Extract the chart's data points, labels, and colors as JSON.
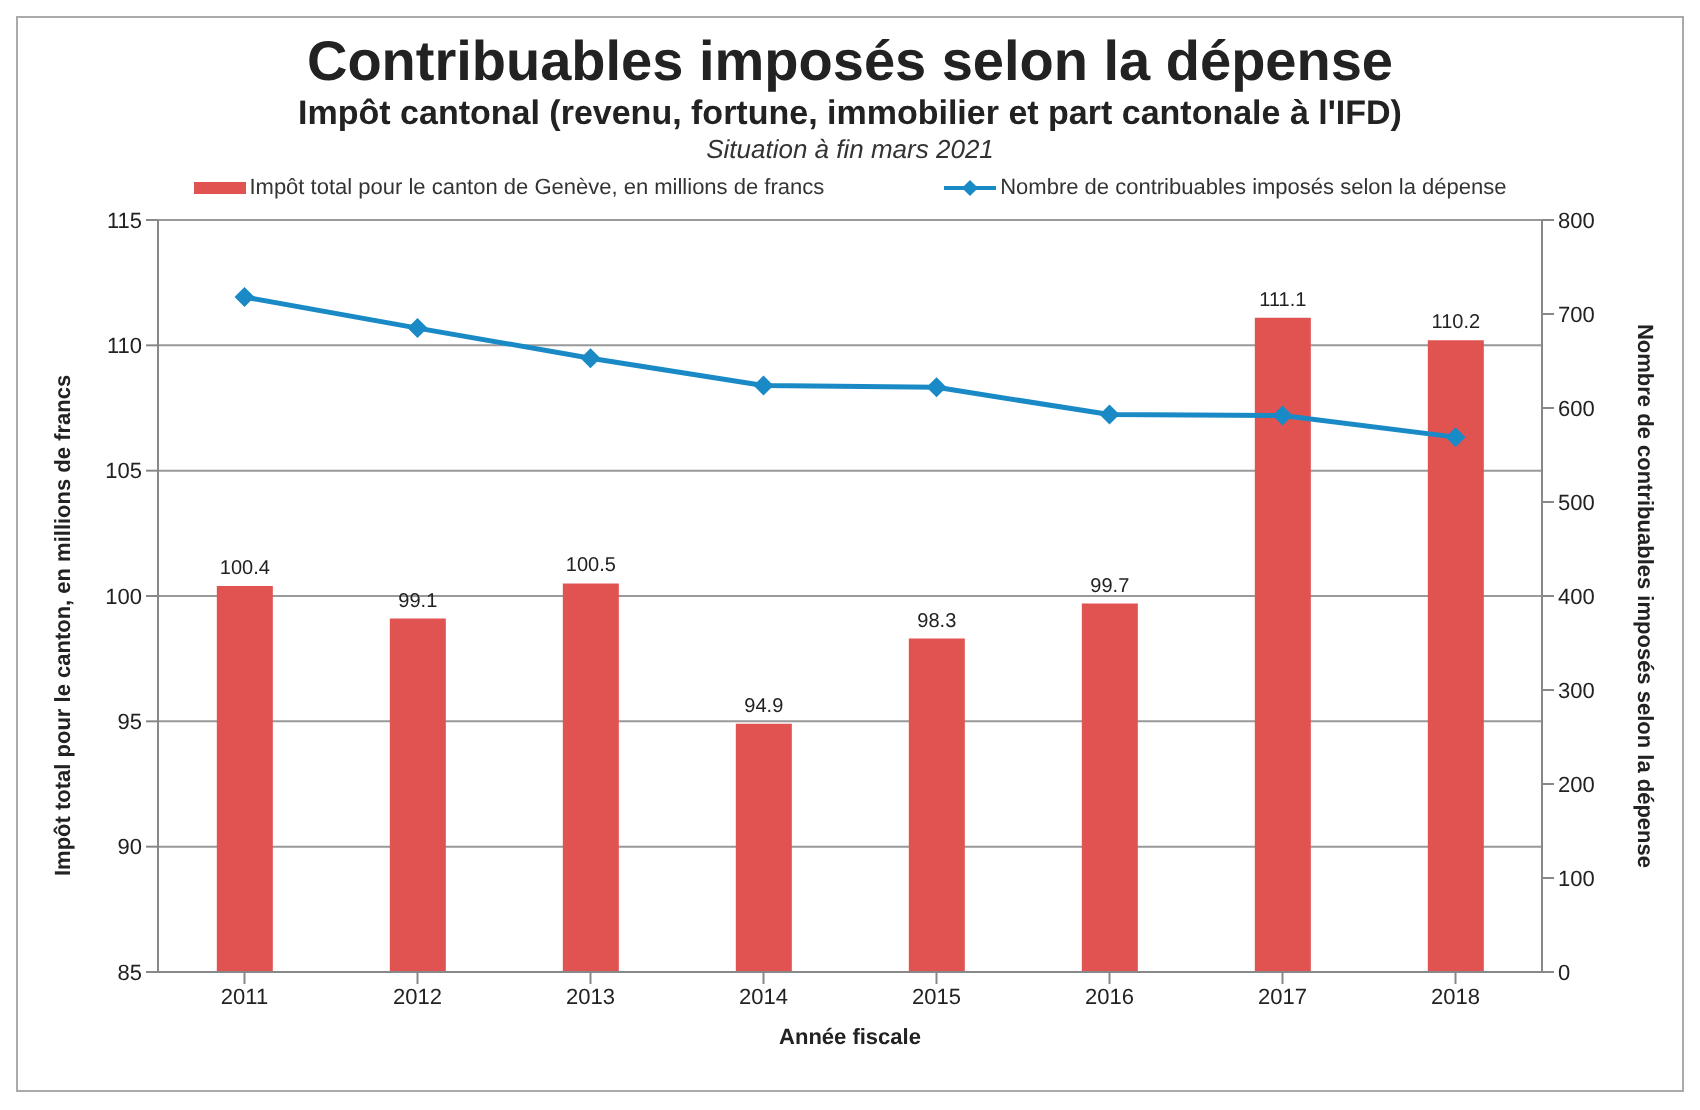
{
  "chart_data": {
    "type": "bar",
    "title": "Contribuables imposés selon la dépense",
    "subtitle": "Impôt cantonal (revenu, fortune, immobilier et part cantonale à l'IFD)",
    "annotations": [
      "Situation à fin mars 2021"
    ],
    "categories": [
      "2011",
      "2012",
      "2013",
      "2014",
      "2015",
      "2016",
      "2017",
      "2018"
    ],
    "xlabel": "Année fiscale",
    "ylabel": "Impôt total pour le canton, en millions de francs",
    "y2label": "Nombre de contribuables imposés selon la dépense",
    "series": [
      {
        "name": "Impôt total pour le canton de Genève, en millions de francs",
        "color": "#e05350",
        "values": [
          100.4,
          99.1,
          100.5,
          94.9,
          98.3,
          99.7,
          111.1,
          110.2
        ],
        "value_labels": [
          "100.4",
          "99.1",
          "100.5",
          "94.9",
          "98.3",
          "99.7",
          "111.1",
          "110.2"
        ]
      },
      {
        "name": "Nombre de contribuables imposés selon la dépense",
        "type": "line",
        "axis": "y2",
        "color": "#1a8ac6",
        "marker": "diamond",
        "values": [
          718,
          685,
          653,
          624,
          622,
          593,
          592,
          569
        ]
      }
    ],
    "ylim": [
      85,
      115
    ],
    "yticks": [
      85,
      90,
      95,
      100,
      105,
      110,
      115
    ],
    "y2lim": [
      0,
      800
    ],
    "y2ticks": [
      0,
      100,
      200,
      300,
      400,
      500,
      600,
      700,
      800
    ],
    "grid": "y",
    "legend": "top"
  }
}
